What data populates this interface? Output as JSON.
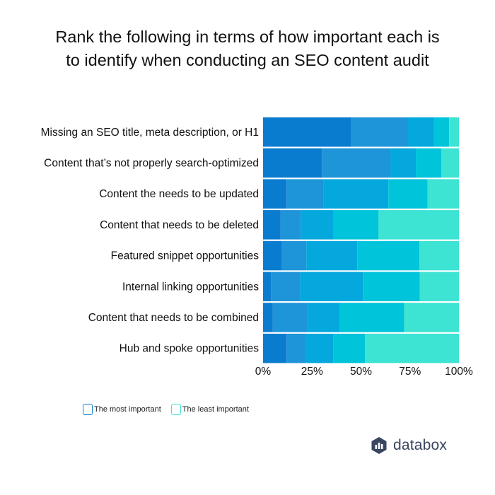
{
  "title_line1": "Rank the following in terms of how important each is",
  "title_line2": "to identify when conducting an SEO content audit",
  "legend": {
    "most_label": "The most important",
    "least_label": "The least important",
    "most_color": "#0a7cd0",
    "least_color": "#3de3d3"
  },
  "brand": {
    "name": "databox",
    "icon": "databox-logo-icon",
    "color": "#3a4660"
  },
  "chart_data": {
    "type": "bar",
    "orientation": "horizontal",
    "stacked": true,
    "percent": true,
    "categories": [
      "Missing an SEO title, meta description, or H1",
      "Content that’s not properly search-optimized",
      "Content the needs to be updated",
      "Content that needs to be deleted",
      "Featured snippet opportunities",
      "Internal linking opportunities",
      "Content that needs to be combined",
      "Hub and spoke opportunities"
    ],
    "series_colors": [
      "#0a7cd0",
      "#1e95d8",
      "#05a8dd",
      "#00c4d9",
      "#3de3d3"
    ],
    "series": [
      {
        "values": [
          45,
          30,
          12,
          7,
          10,
          4,
          5,
          12
        ]
      },
      {
        "values": [
          29,
          35,
          19,
          8,
          13,
          15,
          18,
          10
        ]
      },
      {
        "values": [
          13,
          13,
          33,
          13,
          27,
          32,
          16,
          14
        ]
      },
      {
        "values": [
          8,
          13,
          20,
          18,
          33,
          29,
          33,
          16
        ]
      },
      {
        "values": [
          5,
          9,
          16,
          32,
          21,
          20,
          28,
          48
        ]
      }
    ],
    "xlim": [
      0,
      100
    ],
    "xticks": [
      "0%",
      "25%",
      "50%",
      "75%",
      "100%"
    ],
    "grid": false,
    "legend_position": "bottom-left"
  }
}
